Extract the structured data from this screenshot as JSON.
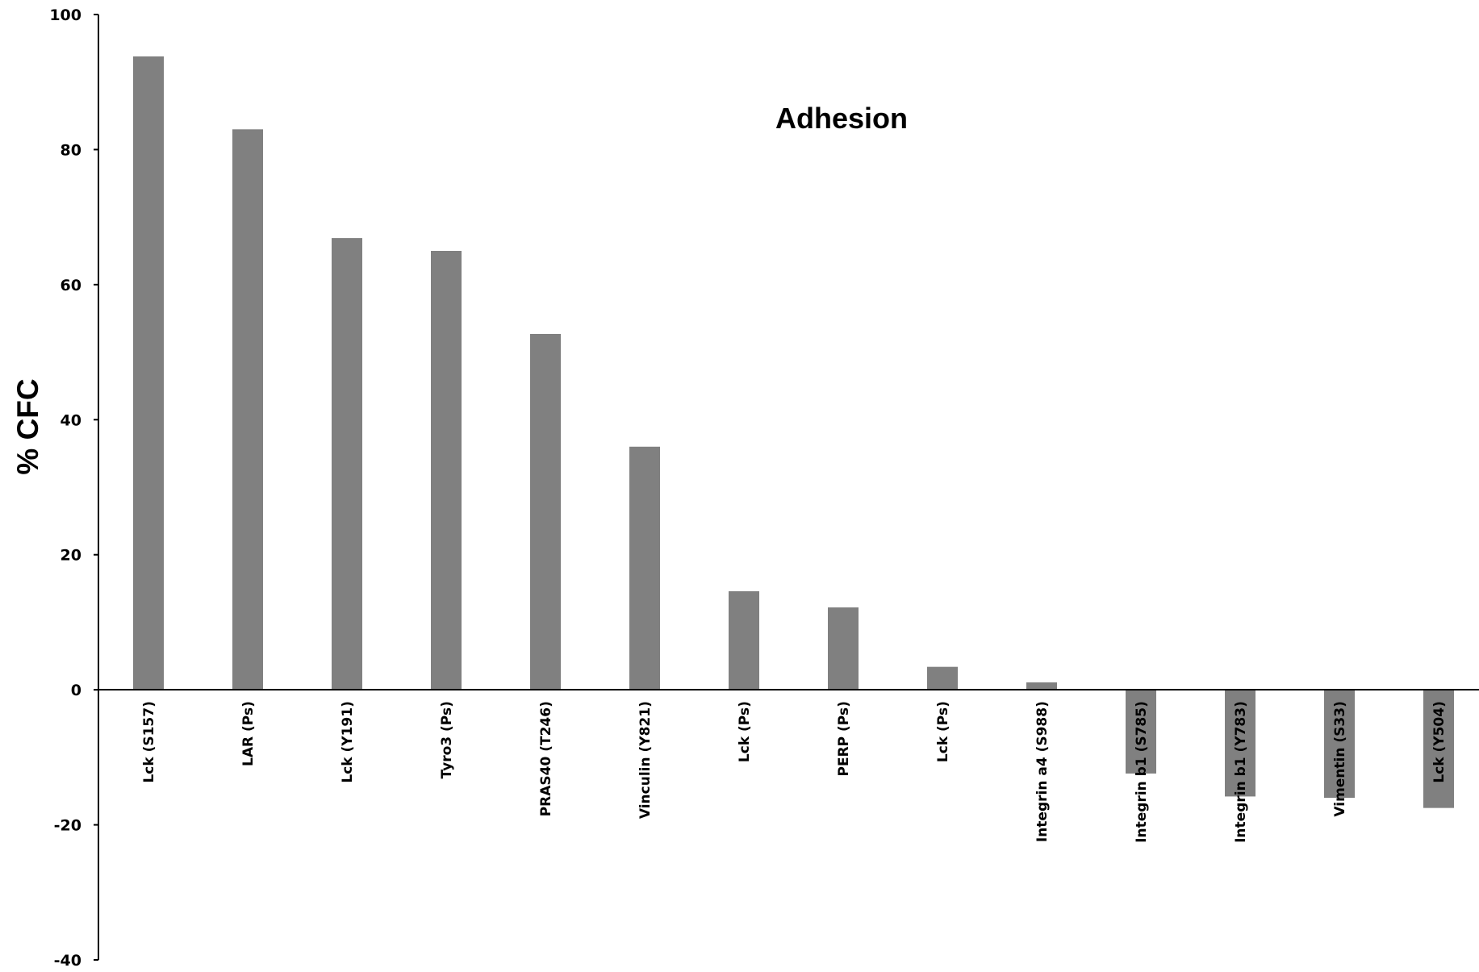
{
  "chart_data": {
    "type": "bar",
    "title": "Adhesion",
    "xlabel": "",
    "ylabel": "% CFC",
    "ylim": [
      -40,
      100
    ],
    "yticks": [
      -40,
      -20,
      0,
      20,
      40,
      60,
      80,
      100
    ],
    "grid": false,
    "legend": "none",
    "categories": [
      "Lck (S157)",
      "LAR (Ps)",
      "Lck (Y191)",
      "Tyro3 (Ps)",
      "PRAS40 (T246)",
      "Vinculin (Y821)",
      "Lck (Ps)",
      "PERP (Ps)",
      "Lck (Ps)",
      "Integrin a4 (S988)",
      "Integrin b1  (S785)",
      "Integrin b1  (Y783)",
      "Vimentin (S33)",
      "Lck (Y504)"
    ],
    "values": [
      93.8,
      83.0,
      66.9,
      65.0,
      52.7,
      36.0,
      14.6,
      12.2,
      3.4,
      1.1,
      -12.4,
      -15.8,
      -16.0,
      -17.5
    ],
    "bar_color": "#808080",
    "axis_color": "#000000"
  }
}
